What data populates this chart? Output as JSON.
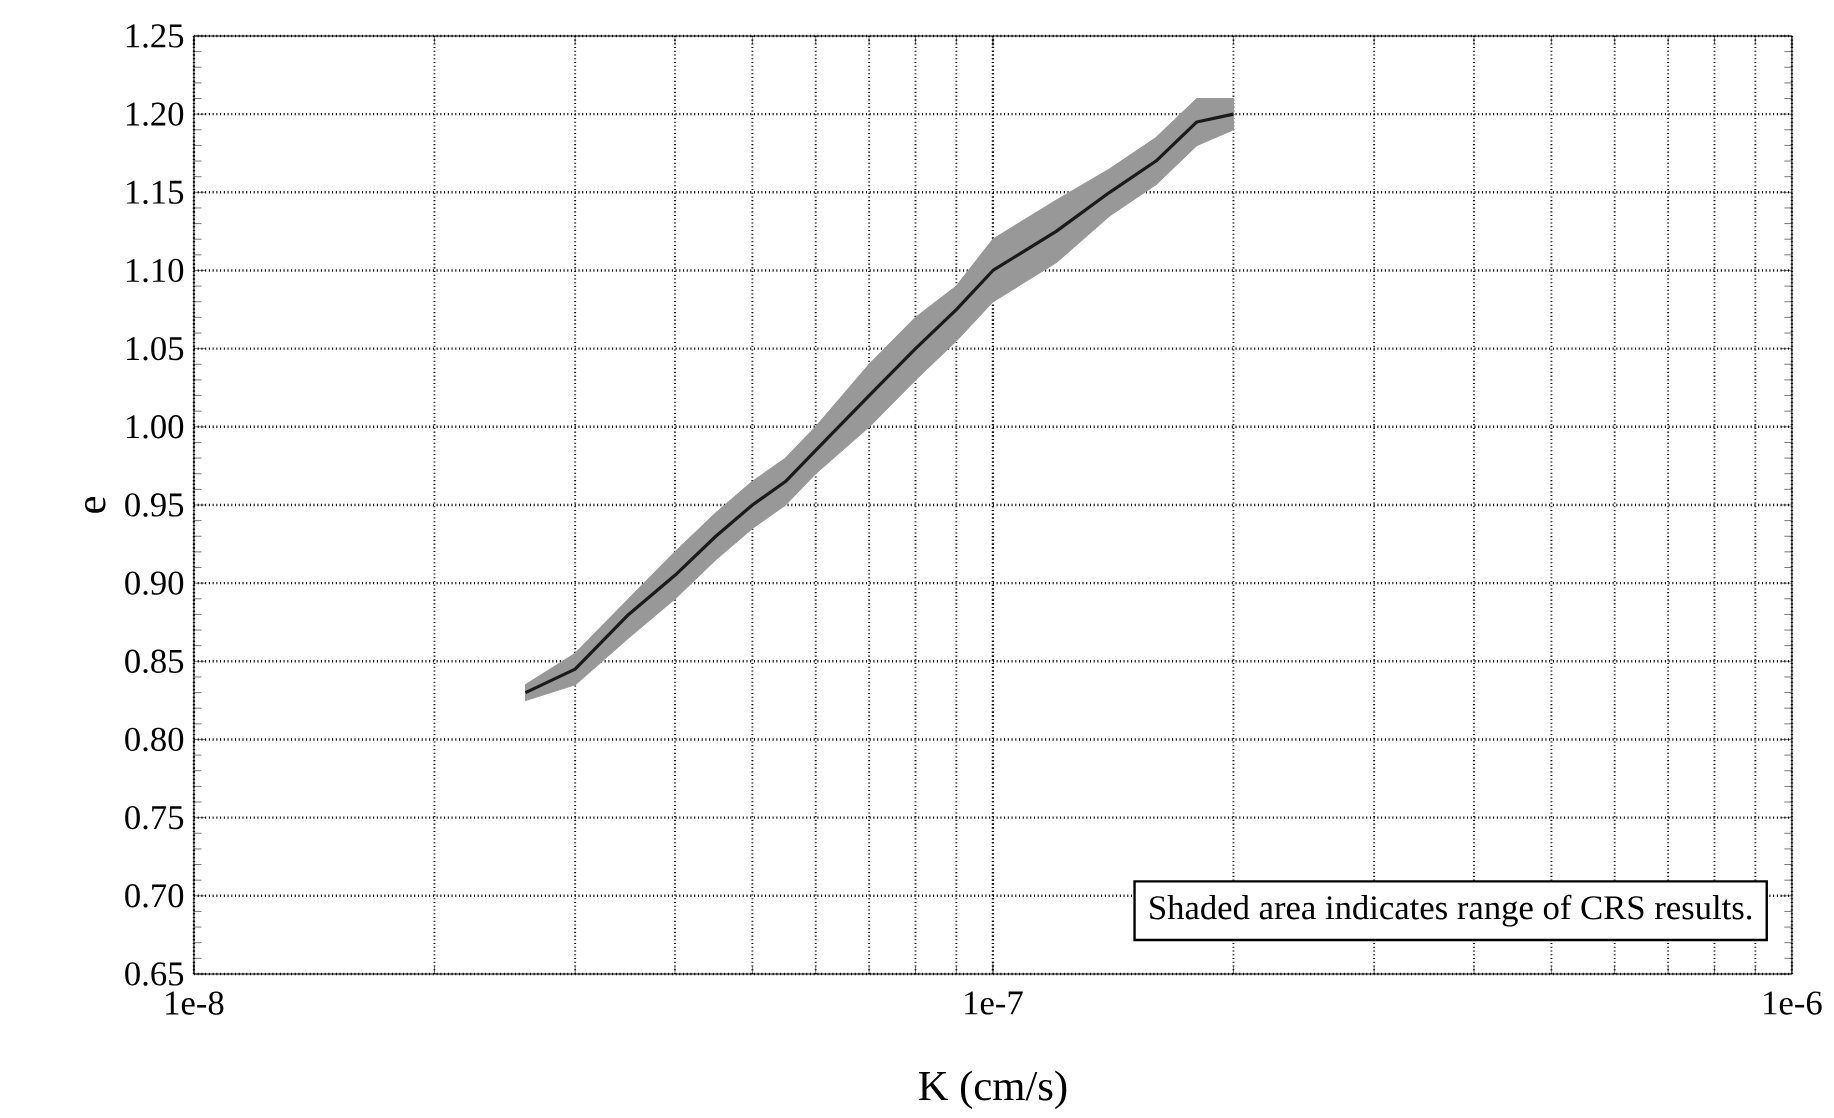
{
  "chart_data": {
    "type": "line",
    "xlabel": "K (cm/s)",
    "ylabel": "e",
    "log": "x",
    "grid": true,
    "marker": "none",
    "line_style": "solid",
    "xlim": [
      1e-08,
      1e-06
    ],
    "ylim": [
      0.65,
      1.25
    ],
    "xticks": [
      {
        "value": 1e-08,
        "label": "1e-8"
      },
      {
        "value": 1e-07,
        "label": "1e-7"
      },
      {
        "value": 1e-06,
        "label": "1e-6"
      }
    ],
    "yticks": [
      {
        "value": 0.65,
        "label": "0.65"
      },
      {
        "value": 0.7,
        "label": "0.70"
      },
      {
        "value": 0.75,
        "label": "0.75"
      },
      {
        "value": 0.8,
        "label": "0.80"
      },
      {
        "value": 0.85,
        "label": "0.85"
      },
      {
        "value": 0.9,
        "label": "0.90"
      },
      {
        "value": 0.95,
        "label": "0.95"
      },
      {
        "value": 1.0,
        "label": "1.00"
      },
      {
        "value": 1.05,
        "label": "1.05"
      },
      {
        "value": 1.1,
        "label": "1.10"
      },
      {
        "value": 1.15,
        "label": "1.15"
      },
      {
        "value": 1.2,
        "label": "1.20"
      },
      {
        "value": 1.25,
        "label": "1.25"
      }
    ],
    "series": [
      {
        "color": "#1a1a1a",
        "x": [
          2.6e-08,
          3e-08,
          3.5e-08,
          4e-08,
          4.5e-08,
          5e-08,
          5.5e-08,
          6e-08,
          7e-08,
          8e-08,
          9e-08,
          1e-07,
          1.2e-07,
          1.4e-07,
          1.6e-07,
          1.8e-07,
          2e-07
        ],
        "values": [
          0.83,
          0.845,
          0.88,
          0.905,
          0.93,
          0.95,
          0.965,
          0.985,
          1.02,
          1.05,
          1.075,
          1.1,
          1.125,
          1.15,
          1.17,
          1.195,
          1.2
        ],
        "lower": [
          0.825,
          0.835,
          0.865,
          0.89,
          0.915,
          0.935,
          0.95,
          0.97,
          1.0,
          1.03,
          1.055,
          1.08,
          1.105,
          1.135,
          1.155,
          1.18,
          1.19
        ],
        "upper": [
          0.835,
          0.855,
          0.89,
          0.92,
          0.945,
          0.965,
          0.98,
          1.0,
          1.04,
          1.07,
          1.09,
          1.12,
          1.145,
          1.165,
          1.185,
          1.21,
          1.21
        ]
      }
    ],
    "annotations": [
      "Shaded area indicates range of CRS results."
    ]
  }
}
